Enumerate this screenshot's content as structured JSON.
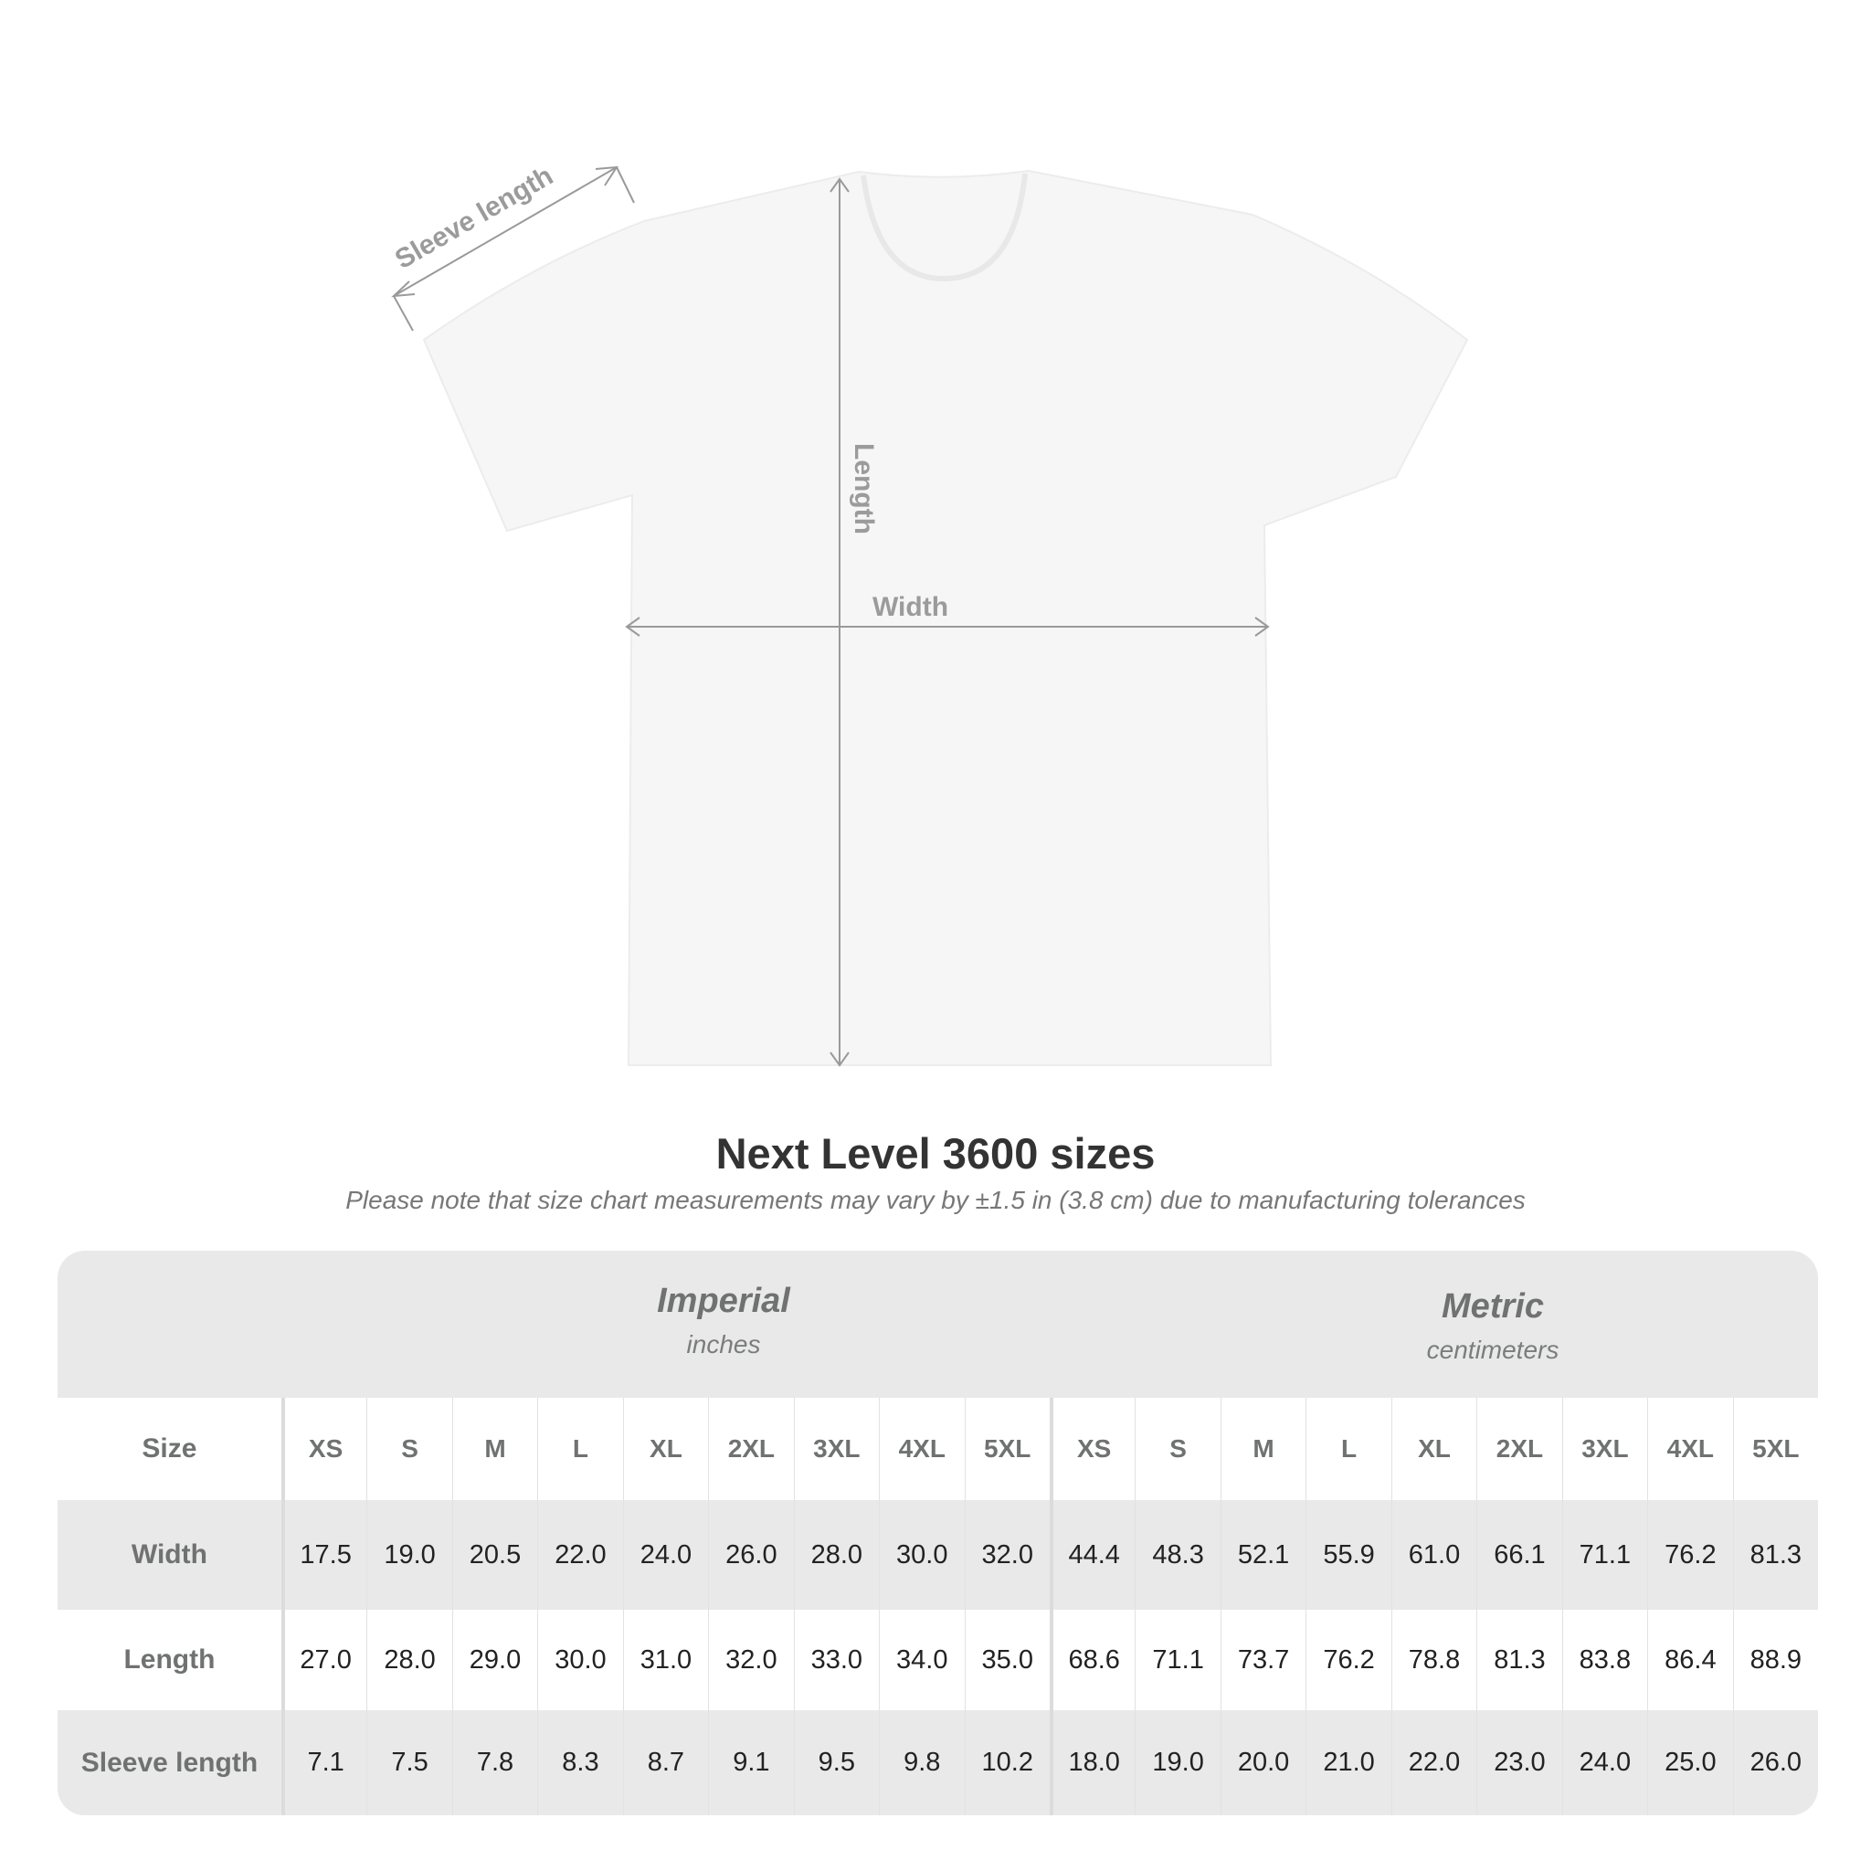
{
  "diagram": {
    "sleeve_label": "Sleeve length",
    "length_label": "Length",
    "width_label": "Width",
    "garment_color": "#f6f6f6",
    "arrow_color": "#9a9a9a"
  },
  "title": "Next Level 3600 sizes",
  "subtitle": "Please note that size chart measurements may vary by ±1.5 in (3.8 cm) due to manufacturing tolerances",
  "table": {
    "imperial": {
      "system": "Imperial",
      "unit": "inches"
    },
    "metric": {
      "system": "Metric",
      "unit": "centimeters"
    },
    "size_label": "Size",
    "sizes": [
      "XS",
      "S",
      "M",
      "L",
      "XL",
      "2XL",
      "3XL",
      "4XL",
      "5XL"
    ],
    "rows": [
      {
        "label": "Width",
        "imperial": [
          "17.5",
          "19.0",
          "20.5",
          "22.0",
          "24.0",
          "26.0",
          "28.0",
          "30.0",
          "32.0"
        ],
        "metric": [
          "44.4",
          "48.3",
          "52.1",
          "55.9",
          "61.0",
          "66.1",
          "71.1",
          "76.2",
          "81.3"
        ]
      },
      {
        "label": "Length",
        "imperial": [
          "27.0",
          "28.0",
          "29.0",
          "30.0",
          "31.0",
          "32.0",
          "33.0",
          "34.0",
          "35.0"
        ],
        "metric": [
          "68.6",
          "71.1",
          "73.7",
          "76.2",
          "78.8",
          "81.3",
          "83.8",
          "86.4",
          "88.9"
        ]
      },
      {
        "label": "Sleeve length",
        "imperial": [
          "7.1",
          "7.5",
          "7.8",
          "8.3",
          "8.7",
          "9.1",
          "9.5",
          "9.8",
          "10.2"
        ],
        "metric": [
          "18.0",
          "19.0",
          "20.0",
          "21.0",
          "22.0",
          "23.0",
          "24.0",
          "25.0",
          "26.0"
        ]
      }
    ]
  }
}
